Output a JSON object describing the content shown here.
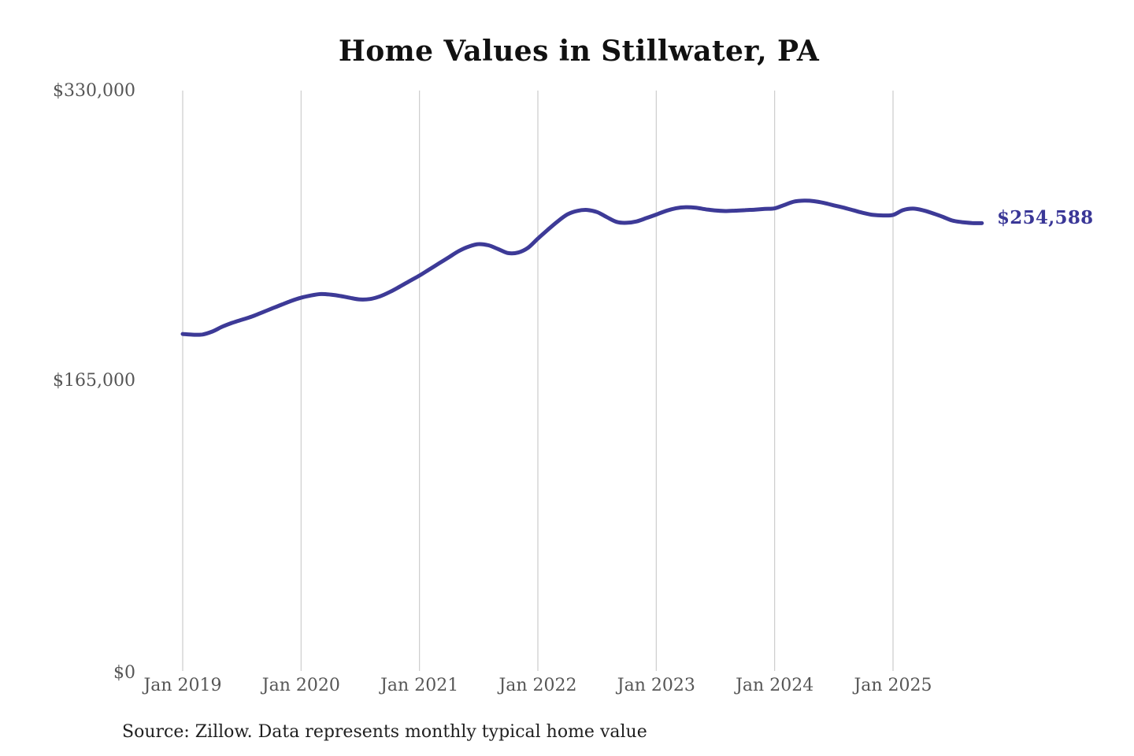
{
  "title": "Home Values in Stillwater, PA",
  "source_note": "Source: Zillow. Data represents monthly typical home value",
  "current_value_label": "$254,588",
  "colors": {
    "line": "#3d3a97",
    "value_label": "#3a3797",
    "gridline": "#cccccc",
    "tick_text": "#565656",
    "title_text": "#111111",
    "source_text": "#1f1f1f",
    "background": "#ffffff"
  },
  "chart_data": {
    "type": "line",
    "title": "Home Values in Stillwater, PA",
    "xlabel": "",
    "ylabel": "",
    "unit": "USD",
    "ylim": [
      0,
      330000
    ],
    "y_ticks": [
      0,
      165000,
      330000
    ],
    "y_tick_labels": [
      "$0",
      "$165,000",
      "$330,000"
    ],
    "x_tick_labels": [
      "Jan 2019",
      "Jan 2020",
      "Jan 2021",
      "Jan 2022",
      "Jan 2023",
      "Jan 2024",
      "Jan 2025"
    ],
    "grid": "vertical year gridlines only, no horizontal gridlines, no axis lines",
    "legend": "none",
    "series": [
      {
        "name": "Monthly typical home value",
        "start_month": "2019-01",
        "end_month": "2025-10",
        "frequency": "monthly",
        "values": [
          191600,
          191200,
          191300,
          193000,
          195700,
          197900,
          199700,
          201500,
          203700,
          206000,
          208200,
          210400,
          212200,
          213500,
          214300,
          214000,
          213200,
          212100,
          211200,
          211500,
          213000,
          215500,
          218500,
          221700,
          224800,
          228300,
          231800,
          235300,
          238800,
          241300,
          242700,
          242000,
          239800,
          237600,
          237900,
          240600,
          245800,
          250800,
          255600,
          259600,
          261600,
          262100,
          260900,
          258000,
          255300,
          254800,
          255600,
          257500,
          259500,
          261600,
          263100,
          263700,
          263400,
          262500,
          261800,
          261500,
          261700,
          262000,
          262300,
          262700,
          263000,
          265000,
          266900,
          267400,
          267100,
          266100,
          264700,
          263400,
          261900,
          260400,
          259300,
          259000,
          259300,
          262000,
          262900,
          262000,
          260300,
          258300,
          256100,
          255200,
          254700,
          254588
        ],
        "final_value": 254588
      }
    ]
  }
}
